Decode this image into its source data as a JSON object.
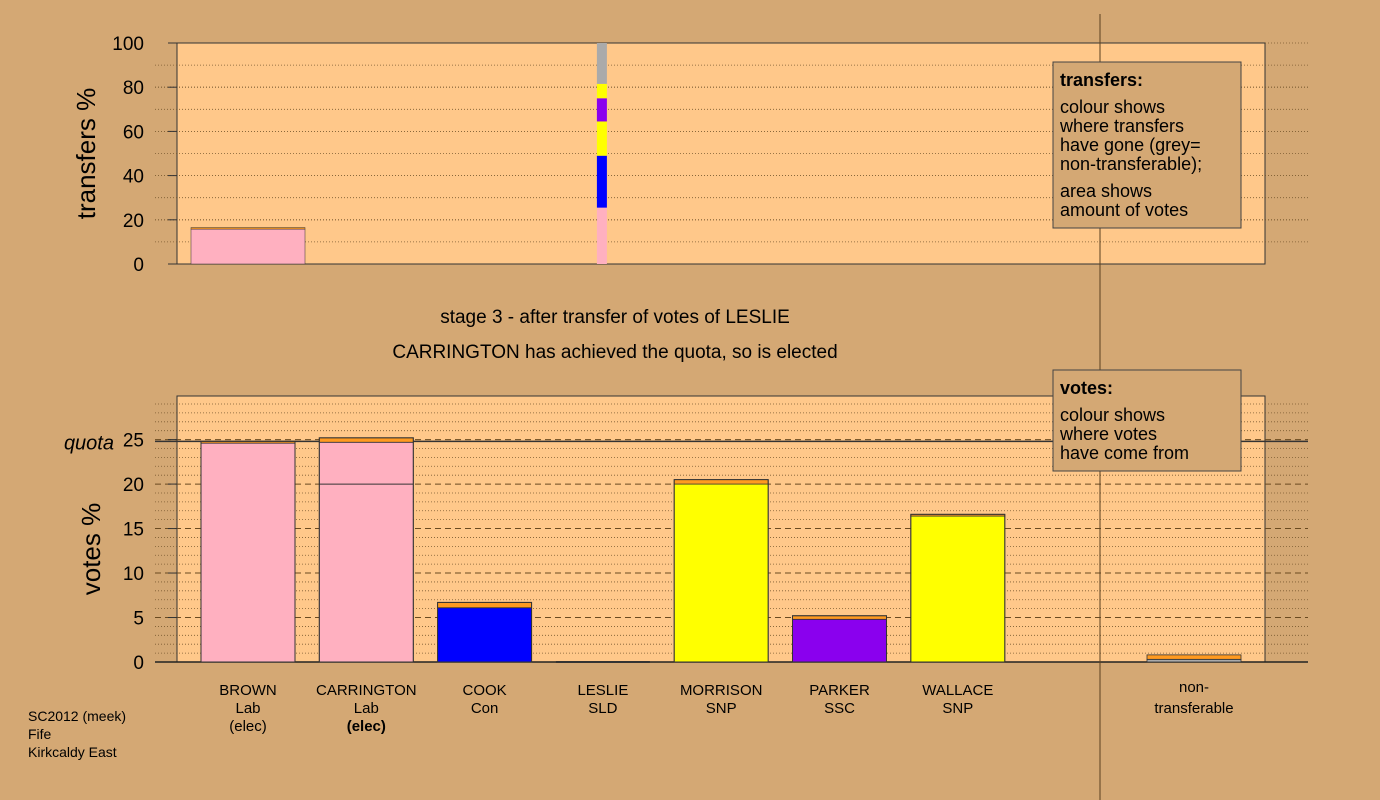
{
  "colors": {
    "background": "#d4a874",
    "plot_bg": "#ffc88a",
    "lab": "#ffb0c0",
    "con": "#0000ff",
    "snp": "#ffff00",
    "ssc": "#8a00ee",
    "sld": "#ff9a20",
    "nontransferable": "#aaaaaa"
  },
  "info": {
    "line1": "SC2012 (meek)",
    "line2": "Fife",
    "line3": "Kirkcaldy East"
  },
  "stage": {
    "title": "stage 3 - after transfer of votes of LESLIE",
    "subtitle": "CARRINGTON has achieved the quota, so is elected"
  },
  "legend_transfers": {
    "title": "transfers:",
    "lines": [
      "colour shows",
      "where transfers",
      "have gone (grey=",
      "non-transferable);"
    ],
    "lines2": [
      "area shows",
      "amount of votes"
    ]
  },
  "legend_votes": {
    "title": "votes:",
    "lines": [
      "colour shows",
      "where votes",
      "have come from"
    ]
  },
  "chart_data": [
    {
      "type": "bar",
      "title": "transfers",
      "ylabel": "transfers %",
      "ylim": [
        0,
        100
      ],
      "yticks": [
        0,
        20,
        40,
        60,
        80,
        100
      ],
      "bars": [
        {
          "candidate": "BROWN",
          "start": 0,
          "value": 16.5,
          "segments": [
            {
              "party": "lab",
              "value": 15.8
            },
            {
              "party": "sld",
              "value": 0.7
            }
          ]
        }
      ],
      "transfer_strip": {
        "from": "LESLIE",
        "column": 3,
        "segments": [
          {
            "party": "lab",
            "value": 25.5
          },
          {
            "party": "con",
            "value": 23.5
          },
          {
            "party": "snp",
            "value": 15.5
          },
          {
            "party": "ssc",
            "value": 10.5
          },
          {
            "party": "snp",
            "value": 6.5
          },
          {
            "party": "nontransferable",
            "value": 18.5
          }
        ]
      }
    },
    {
      "type": "bar",
      "title": "votes",
      "ylabel": "votes %",
      "ylim": [
        0,
        30
      ],
      "yticks": [
        0,
        5,
        10,
        15,
        20,
        25
      ],
      "quota": 24.8,
      "quota_label": "quota",
      "categories": [
        {
          "name": "BROWN",
          "party": "Lab",
          "status": "(elec)",
          "status_bold": false
        },
        {
          "name": "CARRINGTON",
          "party": "Lab",
          "status": "(elec)",
          "status_bold": true
        },
        {
          "name": "COOK",
          "party": "Con",
          "status": "",
          "status_bold": false
        },
        {
          "name": "LESLIE",
          "party": "SLD",
          "status": "",
          "status_bold": false
        },
        {
          "name": "MORRISON",
          "party": "SNP",
          "status": "",
          "status_bold": false
        },
        {
          "name": "PARKER",
          "party": "SSC",
          "status": "",
          "status_bold": false
        },
        {
          "name": "WALLACE",
          "party": "SNP",
          "status": "",
          "status_bold": false
        }
      ],
      "nontransferable_label": [
        "non-",
        "transferable"
      ],
      "bars": [
        {
          "segments": [
            {
              "party": "lab",
              "value": 24.6
            },
            {
              "party": "sld",
              "value": 0.2
            }
          ],
          "divider": null
        },
        {
          "segments": [
            {
              "party": "lab",
              "value": 24.7
            },
            {
              "party": "sld",
              "value": 0.5
            }
          ],
          "divider": 20.0
        },
        {
          "segments": [
            {
              "party": "con",
              "value": 6.1
            },
            {
              "party": "sld",
              "value": 0.6
            }
          ],
          "divider": null
        },
        {
          "segments": [
            {
              "party": "sld",
              "value": 0.0
            }
          ],
          "divider": null
        },
        {
          "segments": [
            {
              "party": "snp",
              "value": 20.0
            },
            {
              "party": "sld",
              "value": 0.5
            }
          ],
          "divider": null
        },
        {
          "segments": [
            {
              "party": "ssc",
              "value": 4.8
            },
            {
              "party": "sld",
              "value": 0.4
            }
          ],
          "divider": null
        },
        {
          "segments": [
            {
              "party": "snp",
              "value": 16.4
            },
            {
              "party": "sld",
              "value": 0.2
            }
          ],
          "divider": null
        }
      ],
      "nontransferable": {
        "segments": [
          {
            "party": "nontransferable",
            "value": 0.3
          },
          {
            "party": "sld",
            "value": 0.5
          }
        ]
      }
    }
  ]
}
